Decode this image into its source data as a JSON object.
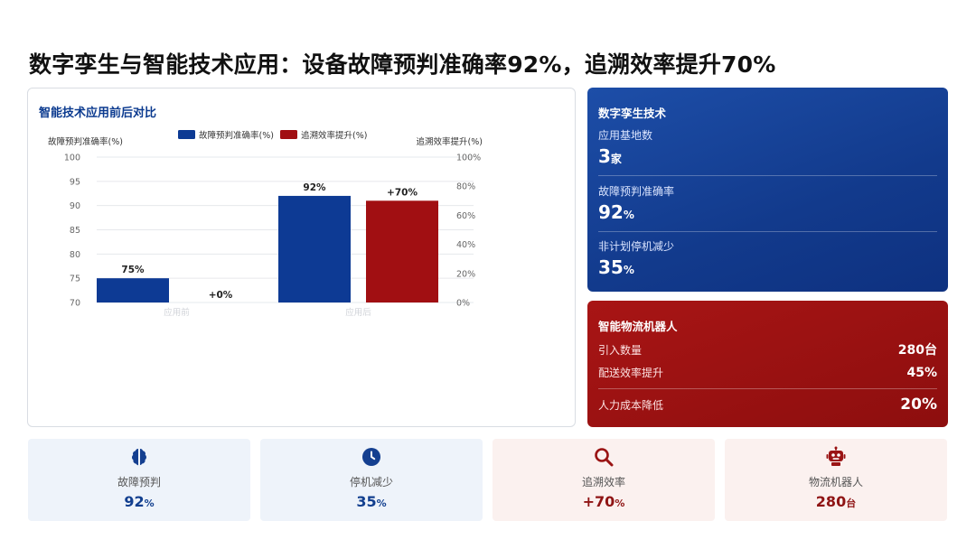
{
  "page": {
    "title": "数字孪生与智能技术应用：设备故障预判准确率92%，追溯效率提升70%"
  },
  "colors": {
    "blue": "#0d3a94",
    "red": "#a10f12"
  },
  "chart_data": {
    "type": "bar",
    "title": "智能技术应用前后对比",
    "categories": [
      "应用前",
      "应用后"
    ],
    "series": [
      {
        "name": "故障预判准确率(%)",
        "axis": "left",
        "values": [
          75,
          92
        ],
        "labels": [
          "75%",
          "92%"
        ]
      },
      {
        "name": "追溯效率提升(%)",
        "axis": "right",
        "values": [
          0,
          70
        ],
        "labels": [
          "+0%",
          "+70%"
        ]
      }
    ],
    "ylabel_left": "故障预判准确率(%)",
    "ylabel_right": "追溯效率提升(%)",
    "ylim_left": [
      70,
      100
    ],
    "ylim_right": [
      0,
      100
    ],
    "yticks_left": [
      "70",
      "75",
      "80",
      "85",
      "90",
      "95",
      "100"
    ],
    "yticks_right": [
      "0%",
      "20%",
      "40%",
      "60%",
      "80%",
      "100%"
    ],
    "legend": "top-center",
    "grid": true
  },
  "twin": {
    "title": "数字孪生技术",
    "items": [
      {
        "label": "应用基地数",
        "value": "3",
        "unit": "家"
      },
      {
        "label": "故障预判准确率",
        "value": "92",
        "unit": "%"
      },
      {
        "label": "非计划停机减少",
        "value": "35",
        "unit": "%"
      }
    ]
  },
  "robot": {
    "title": "智能物流机器人",
    "rows": [
      {
        "label": "引入数量",
        "value": "280台"
      },
      {
        "label": "配送效率提升",
        "value": "45%"
      },
      {
        "label": "人力成本降低",
        "value": "20%"
      }
    ]
  },
  "kpis": [
    {
      "icon": "brain-icon",
      "label": "故障预判",
      "value": "92",
      "unit": "%"
    },
    {
      "icon": "clock-icon",
      "label": "停机减少",
      "value": "35",
      "unit": "%"
    },
    {
      "icon": "search-icon",
      "label": "追溯效率",
      "value": "+70",
      "unit": "%"
    },
    {
      "icon": "robot-icon",
      "label": "物流机器人",
      "value": "280",
      "unit": "台"
    }
  ]
}
